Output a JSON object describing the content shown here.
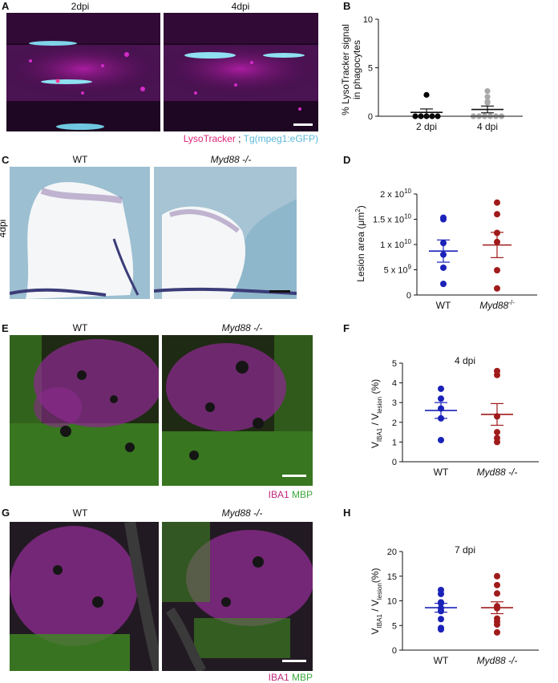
{
  "panels": {
    "A": {
      "letter": "A",
      "left_title": "2dpi",
      "right_title": "4dpi",
      "legend_a": "LysoTracker",
      "legend_sep": " ; ",
      "legend_b": "Tg(mpeg1:eGFP)",
      "color_a": "#e0267a",
      "color_b": "#5bb8d8"
    },
    "B": {
      "letter": "B"
    },
    "C": {
      "letter": "C",
      "left_title": "WT",
      "right_title": "Myd88 -/-",
      "side": "4dpi"
    },
    "D": {
      "letter": "D"
    },
    "E": {
      "letter": "E",
      "left_title": "WT",
      "right_title": "Myd88 -/-",
      "legend_a": "IBA1",
      "legend_b": "MBP",
      "color_a": "#c0267a",
      "color_b": "#3aa83a"
    },
    "F": {
      "letter": "F"
    },
    "G": {
      "letter": "G",
      "left_title": "WT",
      "right_title": "Myd88 -/-",
      "legend_a": "IBA1",
      "legend_b": "MBP",
      "color_a": "#c0267a",
      "color_b": "#3aa83a"
    },
    "H": {
      "letter": "H"
    }
  },
  "chart_data": [
    {
      "id": "B",
      "type": "scatter",
      "ylabel": "% LysoTracker signal in phagocytes",
      "ylabel_line1": "% LysoTracker signal",
      "ylabel_line2": "in phagocytes",
      "ylim": [
        0,
        10
      ],
      "yticks": [
        "0",
        "5",
        "10"
      ],
      "categories": [
        "2 dpi",
        "4 dpi"
      ],
      "series": [
        {
          "values": [
            2.2,
            0,
            0,
            0,
            0,
            0
          ],
          "color": "#000000",
          "mean": 0.4,
          "sem": 0.35
        },
        {
          "values": [
            2.6,
            2.0,
            1.5,
            1.4,
            0,
            0,
            0,
            0,
            0,
            0
          ],
          "color": "#a8a8a8",
          "mean": 0.7,
          "sem": 0.35
        }
      ]
    },
    {
      "id": "D",
      "type": "scatter",
      "ylabel": "Lesion area (μm²)",
      "ylabel_text": "Lesion area (μm",
      "ylabel_sup": "2",
      "ylabel_end": ")",
      "ylim": [
        0,
        20000000000.0
      ],
      "yticks": [
        {
          "m": "0",
          "e": ""
        },
        {
          "m": "5 x 10",
          "e": "9"
        },
        {
          "m": "1 x 10",
          "e": "10"
        },
        {
          "m": "1.5 x 10",
          "e": "10"
        },
        {
          "m": "2 x 10",
          "e": "10"
        }
      ],
      "categories": [
        {
          "text": "WT",
          "sup": ""
        },
        {
          "text": "Myd88",
          "sup": "-/-"
        }
      ],
      "series": [
        {
          "values": [
            15300000000.0,
            15000000000.0,
            10300000000.0,
            8000000000.0,
            5400000000.0,
            2200000000.0
          ],
          "color": "#1a22b8",
          "mean": 8700000000.0,
          "sem": 2200000000.0
        },
        {
          "values": [
            18300000000.0,
            16000000000.0,
            12300000000.0,
            10500000000.0,
            4900000000.0,
            1300000000.0
          ],
          "color": "#a01b1b",
          "mean": 9900000000.0,
          "sem": 2500000000.0
        }
      ]
    },
    {
      "id": "F",
      "type": "scatter",
      "title": "4 dpi",
      "ylabel": "VIBA1 / Vlesion (%)",
      "ylabel_v1": "V",
      "ylabel_s1": "IBA1",
      "ylabel_mid": " / V",
      "ylabel_s2": "lesion",
      "ylabel_end": " (%)",
      "ylim": [
        0,
        5
      ],
      "yticks": [
        "0",
        "1",
        "2",
        "3",
        "4",
        "5"
      ],
      "categories": [
        "WT",
        "Myd88 -/-"
      ],
      "series": [
        {
          "values": [
            3.7,
            3.2,
            2.7,
            2.2,
            1.1
          ],
          "color": "#1a22b8",
          "mean": 2.6,
          "sem": 0.4
        },
        {
          "values": [
            4.6,
            4.4,
            2.3,
            1.5,
            1.2,
            1.0
          ],
          "color": "#a01b1b",
          "mean": 2.4,
          "sem": 0.55
        }
      ]
    },
    {
      "id": "H",
      "type": "scatter",
      "title": "7 dpi",
      "ylabel": "VIBA1 / Vlesion(%)",
      "ylabel_v1": "V",
      "ylabel_s1": "IBA1",
      "ylabel_mid": " / V",
      "ylabel_s2": "lesion",
      "ylabel_end": "(%)",
      "ylim": [
        0,
        20
      ],
      "yticks": [
        "0",
        "5",
        "10",
        "15",
        "20"
      ],
      "categories": [
        "WT",
        "Myd88 -/-"
      ],
      "series": [
        {
          "values": [
            12.2,
            11.4,
            9.7,
            9.5,
            8.5,
            7.9,
            6.3,
            4.5,
            4.2
          ],
          "color": "#1a22b8",
          "mean": 8.6,
          "sem": 0.9
        },
        {
          "values": [
            15.0,
            13.2,
            11.5,
            8.9,
            8.5,
            6.4,
            5.8,
            5.2,
            3.6
          ],
          "color": "#a01b1b",
          "mean": 8.6,
          "sem": 1.2
        }
      ]
    }
  ]
}
